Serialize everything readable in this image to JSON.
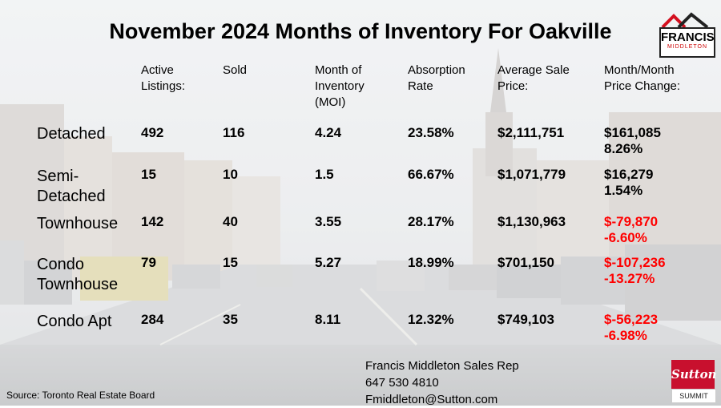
{
  "title": "November 2024 Months of Inventory For Oakville",
  "headers": [
    [
      "Active",
      "Listings:"
    ],
    [
      "Sold"
    ],
    [
      "Month of",
      "Inventory",
      "(MOI)"
    ],
    [
      "Absorption",
      "Rate"
    ],
    [
      "Average Sale",
      "Price:"
    ],
    [
      "Month/Month",
      "Price Change:"
    ]
  ],
  "rows": [
    {
      "label": [
        "Detached"
      ],
      "active": "492",
      "sold": "116",
      "moi": "4.24",
      "absorption": "23.58%",
      "avg_price": "$2,111,751",
      "change": "$161,085",
      "change_pct": "8.26%",
      "negative": false
    },
    {
      "label": [
        "Semi-",
        "Detached"
      ],
      "active": "15",
      "sold": "10",
      "moi": "1.5",
      "absorption": "66.67%",
      "avg_price": "$1,071,779",
      "change": "$16,279",
      "change_pct": "1.54%",
      "negative": false
    },
    {
      "label": [
        "Townhouse"
      ],
      "active": "142",
      "sold": "40",
      "moi": "3.55",
      "absorption": "28.17%",
      "avg_price": "$1,130,963",
      "change": "$-79,870",
      "change_pct": "-6.60%",
      "negative": true
    },
    {
      "label": [
        "Condo",
        "Townhouse"
      ],
      "active": "79",
      "sold": "15",
      "moi": "5.27",
      "absorption": "18.99%",
      "avg_price": "$701,150",
      "change": "$-107,236",
      "change_pct": "-13.27%",
      "negative": true
    },
    {
      "label": [
        "Condo Apt"
      ],
      "active": "284",
      "sold": "35",
      "moi": "8.11",
      "absorption": "12.32%",
      "avg_price": "$749,103",
      "change": "$-56,223",
      "change_pct": "-6.98%",
      "negative": true
    }
  ],
  "contact": {
    "name": "Francis Middleton Sales Rep",
    "phone": "647 530 4810",
    "email": "Fmiddleton@Sutton.com"
  },
  "source": "Source: Toronto Real Estate Board",
  "logo": {
    "name": "FRANCIS",
    "sub": "MIDDLETON"
  },
  "brand": {
    "name": "Sutton",
    "sub": "SUMMIT"
  },
  "colors": {
    "negative": "#ff0000",
    "brand_red": "#c8102e"
  }
}
